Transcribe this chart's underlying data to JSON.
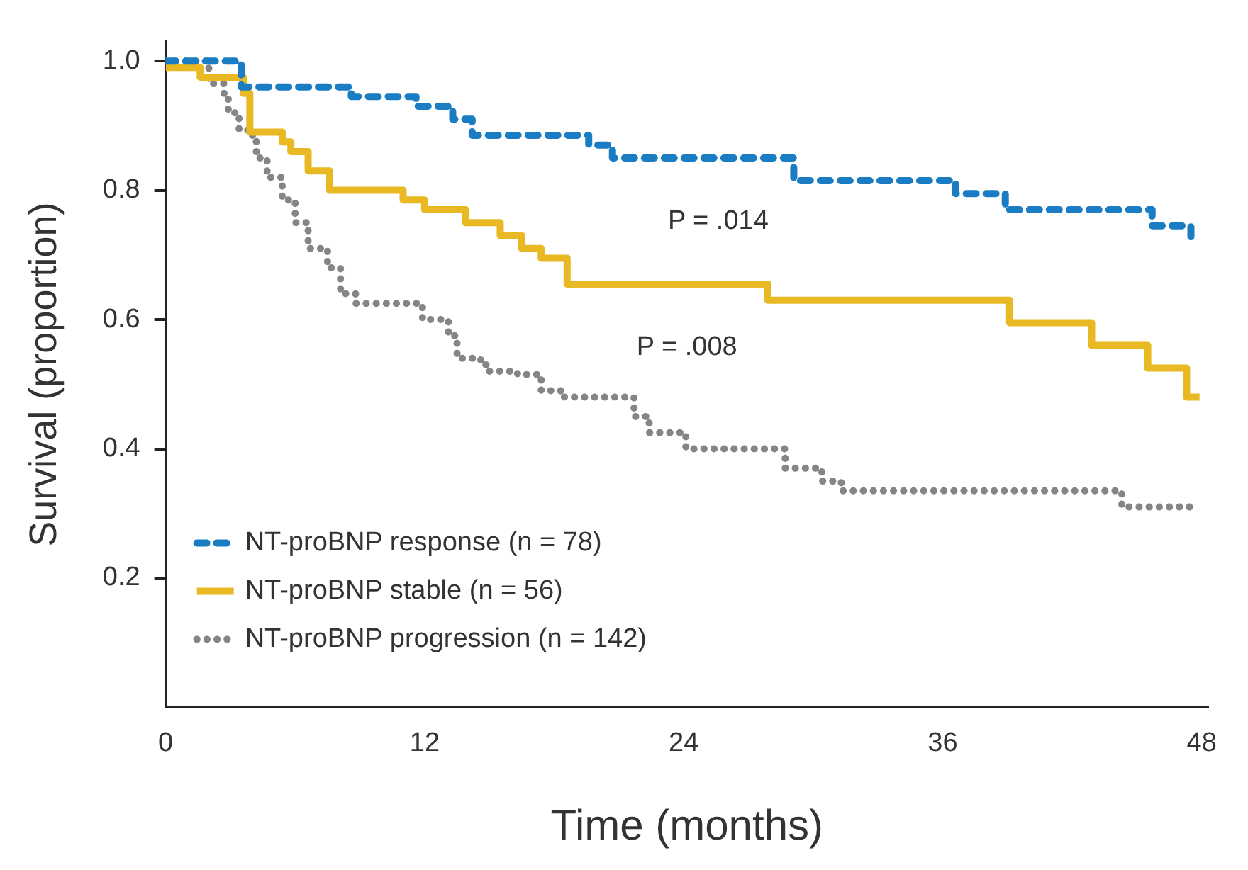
{
  "chart_data": {
    "type": "step",
    "xlabel": "Time (months)",
    "ylabel": "Survival (proportion)",
    "xlim": [
      0,
      48.3
    ],
    "xticks": [
      0,
      12,
      24,
      36,
      48
    ],
    "ylim": [
      0,
      1.03
    ],
    "yticks": [
      {
        "value": 0.2,
        "label": "0.2"
      },
      {
        "value": 0.4,
        "label": "0.4"
      },
      {
        "value": 0.6,
        "label": "0.6"
      },
      {
        "value": 0.8,
        "label": "0.8"
      },
      {
        "value": 1,
        "label": "1.0"
      }
    ],
    "grid": false,
    "legend": "bottom left",
    "marker": "none",
    "annotations": [
      "P = .014",
      "P = .008"
    ],
    "series": [
      {
        "name": "NT-proBNP response (n = 78)",
        "color": "#1a7dc4",
        "line_style": "dashed",
        "x": [
          0,
          3.5,
          8.6,
          11.6,
          13.3,
          14.2,
          19.6,
          20.7,
          29.1,
          36.6,
          38.9,
          45.7,
          47.5
        ],
        "values": [
          1,
          0.96,
          0.945,
          0.93,
          0.91,
          0.885,
          0.87,
          0.85,
          0.815,
          0.795,
          0.77,
          0.745,
          0.72
        ]
      },
      {
        "name": "NT-proBNP stable (n = 56)",
        "color": "#e8b923",
        "line_style": "solid",
        "x": [
          0,
          1.6,
          3.6,
          3.9,
          5.4,
          5.8,
          6.6,
          7.6,
          11,
          12,
          13.9,
          15.5,
          16.5,
          17.4,
          18.6,
          27.9,
          39.1,
          42.9,
          45.5,
          47.3,
          47.9
        ],
        "values": [
          0.99,
          0.975,
          0.95,
          0.89,
          0.875,
          0.86,
          0.83,
          0.8,
          0.785,
          0.77,
          0.75,
          0.73,
          0.71,
          0.695,
          0.655,
          0.63,
          0.595,
          0.56,
          0.525,
          0.48,
          0.48
        ]
      },
      {
        "name": "NT-proBNP progression (n = 142)",
        "color": "#858585",
        "line_style": "dotted",
        "x": [
          0,
          2,
          2.7,
          2.9,
          3.4,
          3.8,
          4.2,
          4.7,
          5.4,
          6,
          6.6,
          7.5,
          8.1,
          8.8,
          11.9,
          13.1,
          13.5,
          14.6,
          15,
          16.3,
          17.4,
          18.3,
          21.7,
          22.4,
          24.1,
          28.7,
          30.4,
          31.3,
          44.3,
          47.6
        ],
        "values": [
          1,
          0.965,
          0.95,
          0.92,
          0.895,
          0.885,
          0.85,
          0.82,
          0.785,
          0.75,
          0.71,
          0.68,
          0.64,
          0.625,
          0.6,
          0.575,
          0.54,
          0.53,
          0.52,
          0.515,
          0.49,
          0.48,
          0.45,
          0.425,
          0.4,
          0.37,
          0.35,
          0.335,
          0.31,
          0.31
        ]
      }
    ]
  }
}
